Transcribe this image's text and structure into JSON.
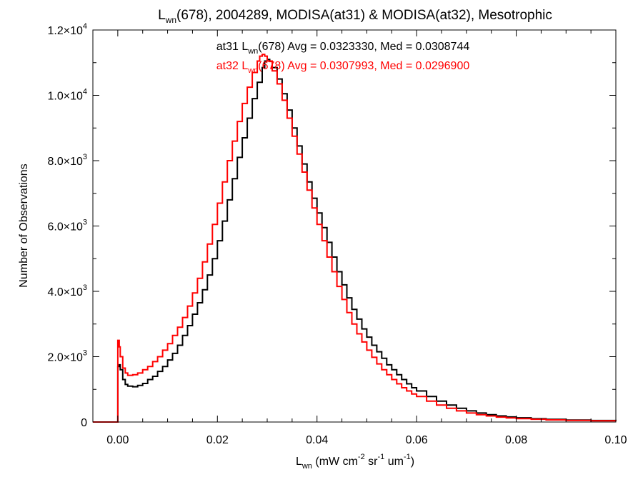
{
  "chart_data": {
    "type": "line",
    "step": true,
    "title": {
      "pre": "L",
      "sub": "wn",
      "post": "(678), 2004289, MODISA(at31) & MODISA(at32), Mesotrophic"
    },
    "xlabel": {
      "pre": "L",
      "sub": "wn",
      "units": [
        {
          "t": " (mW cm"
        },
        {
          "sup": "-2"
        },
        {
          "t": " sr"
        },
        {
          "sup": "-1"
        },
        {
          "t": " um"
        },
        {
          "sup": "-1"
        },
        {
          "t": ")"
        }
      ]
    },
    "ylabel": "Number of Observations",
    "xlim": [
      -0.005,
      0.1
    ],
    "ylim": [
      0,
      12000
    ],
    "xticks": [
      {
        "v": 0.0,
        "label": "0.00"
      },
      {
        "v": 0.02,
        "label": "0.02"
      },
      {
        "v": 0.04,
        "label": "0.04"
      },
      {
        "v": 0.06,
        "label": "0.06"
      },
      {
        "v": 0.08,
        "label": "0.08"
      },
      {
        "v": 0.1,
        "label": "0.10"
      }
    ],
    "yticks": [
      {
        "v": 0,
        "label": "0",
        "exp": ""
      },
      {
        "v": 2000,
        "label": "2.0×10",
        "exp": "3"
      },
      {
        "v": 4000,
        "label": "4.0×10",
        "exp": "3"
      },
      {
        "v": 6000,
        "label": "6.0×10",
        "exp": "3"
      },
      {
        "v": 8000,
        "label": "8.0×10",
        "exp": "3"
      },
      {
        "v": 10000,
        "label": "1.0×10",
        "exp": "4"
      },
      {
        "v": 12000,
        "label": "1.2×10",
        "exp": "4"
      }
    ],
    "series": [
      {
        "name": "at31",
        "color": "#000000",
        "annotation": {
          "pre": "at31 L",
          "sub": "wn",
          "post": "(678) Avg = 0.0323330, Med = 0.0308744"
        },
        "points": [
          [
            -0.005,
            0
          ],
          [
            -0.0002,
            0
          ],
          [
            0.0,
            1700
          ],
          [
            0.0003,
            1750
          ],
          [
            0.0005,
            1600
          ],
          [
            0.001,
            1300
          ],
          [
            0.0015,
            1150
          ],
          [
            0.002,
            1100
          ],
          [
            0.003,
            1080
          ],
          [
            0.004,
            1120
          ],
          [
            0.005,
            1180
          ],
          [
            0.006,
            1300
          ],
          [
            0.007,
            1400
          ],
          [
            0.008,
            1550
          ],
          [
            0.009,
            1700
          ],
          [
            0.01,
            1900
          ],
          [
            0.011,
            2100
          ],
          [
            0.012,
            2350
          ],
          [
            0.013,
            2650
          ],
          [
            0.014,
            2950
          ],
          [
            0.015,
            3300
          ],
          [
            0.016,
            3650
          ],
          [
            0.017,
            4050
          ],
          [
            0.018,
            4500
          ],
          [
            0.019,
            5000
          ],
          [
            0.02,
            5550
          ],
          [
            0.021,
            6150
          ],
          [
            0.022,
            6800
          ],
          [
            0.023,
            7450
          ],
          [
            0.024,
            8100
          ],
          [
            0.025,
            8700
          ],
          [
            0.026,
            9300
          ],
          [
            0.027,
            9900
          ],
          [
            0.028,
            10400
          ],
          [
            0.029,
            10850
          ],
          [
            0.0295,
            11050
          ],
          [
            0.03,
            11100
          ],
          [
            0.0305,
            11050
          ],
          [
            0.031,
            10850
          ],
          [
            0.032,
            10500
          ],
          [
            0.033,
            10050
          ],
          [
            0.034,
            9550
          ],
          [
            0.035,
            9000
          ],
          [
            0.036,
            8450
          ],
          [
            0.037,
            7900
          ],
          [
            0.038,
            7350
          ],
          [
            0.039,
            6850
          ],
          [
            0.04,
            6400
          ],
          [
            0.041,
            5950
          ],
          [
            0.042,
            5500
          ],
          [
            0.043,
            5050
          ],
          [
            0.044,
            4600
          ],
          [
            0.045,
            4200
          ],
          [
            0.046,
            3800
          ],
          [
            0.047,
            3450
          ],
          [
            0.048,
            3150
          ],
          [
            0.049,
            2850
          ],
          [
            0.05,
            2600
          ],
          [
            0.051,
            2350
          ],
          [
            0.052,
            2150
          ],
          [
            0.053,
            1950
          ],
          [
            0.054,
            1750
          ],
          [
            0.055,
            1600
          ],
          [
            0.056,
            1450
          ],
          [
            0.057,
            1300
          ],
          [
            0.058,
            1170
          ],
          [
            0.059,
            1050
          ],
          [
            0.06,
            950
          ],
          [
            0.062,
            780
          ],
          [
            0.064,
            640
          ],
          [
            0.066,
            520
          ],
          [
            0.068,
            420
          ],
          [
            0.07,
            340
          ],
          [
            0.072,
            275
          ],
          [
            0.074,
            225
          ],
          [
            0.076,
            185
          ],
          [
            0.078,
            155
          ],
          [
            0.08,
            130
          ],
          [
            0.083,
            100
          ],
          [
            0.086,
            80
          ],
          [
            0.09,
            60
          ],
          [
            0.095,
            45
          ],
          [
            0.1,
            35
          ]
        ]
      },
      {
        "name": "at32",
        "color": "#ff0000",
        "annotation": {
          "pre": "at32 L",
          "sub": "wn",
          "post": "(678) Avg = 0.0307993, Med = 0.0296900"
        },
        "points": [
          [
            -0.005,
            0
          ],
          [
            -0.0002,
            0
          ],
          [
            0.0,
            2500
          ],
          [
            0.0003,
            2300
          ],
          [
            0.0005,
            2000
          ],
          [
            0.001,
            1650
          ],
          [
            0.0015,
            1500
          ],
          [
            0.002,
            1430
          ],
          [
            0.003,
            1450
          ],
          [
            0.004,
            1500
          ],
          [
            0.005,
            1600
          ],
          [
            0.006,
            1700
          ],
          [
            0.007,
            1850
          ],
          [
            0.008,
            2000
          ],
          [
            0.009,
            2200
          ],
          [
            0.01,
            2400
          ],
          [
            0.011,
            2650
          ],
          [
            0.012,
            2900
          ],
          [
            0.013,
            3200
          ],
          [
            0.014,
            3550
          ],
          [
            0.015,
            3950
          ],
          [
            0.016,
            4400
          ],
          [
            0.017,
            4900
          ],
          [
            0.018,
            5450
          ],
          [
            0.019,
            6050
          ],
          [
            0.02,
            6700
          ],
          [
            0.021,
            7350
          ],
          [
            0.022,
            8000
          ],
          [
            0.023,
            8600
          ],
          [
            0.024,
            9200
          ],
          [
            0.025,
            9750
          ],
          [
            0.026,
            10250
          ],
          [
            0.027,
            10700
          ],
          [
            0.028,
            11050
          ],
          [
            0.0285,
            11200
          ],
          [
            0.029,
            11250
          ],
          [
            0.0295,
            11200
          ],
          [
            0.03,
            11050
          ],
          [
            0.031,
            10750
          ],
          [
            0.032,
            10350
          ],
          [
            0.033,
            9850
          ],
          [
            0.034,
            9300
          ],
          [
            0.035,
            8750
          ],
          [
            0.036,
            8200
          ],
          [
            0.037,
            7650
          ],
          [
            0.038,
            7100
          ],
          [
            0.039,
            6550
          ],
          [
            0.04,
            6050
          ],
          [
            0.041,
            5550
          ],
          [
            0.042,
            5050
          ],
          [
            0.043,
            4600
          ],
          [
            0.044,
            4150
          ],
          [
            0.045,
            3750
          ],
          [
            0.046,
            3350
          ],
          [
            0.047,
            3000
          ],
          [
            0.048,
            2700
          ],
          [
            0.049,
            2450
          ],
          [
            0.05,
            2200
          ],
          [
            0.051,
            1980
          ],
          [
            0.052,
            1780
          ],
          [
            0.053,
            1600
          ],
          [
            0.054,
            1450
          ],
          [
            0.055,
            1300
          ],
          [
            0.056,
            1170
          ],
          [
            0.057,
            1050
          ],
          [
            0.058,
            950
          ],
          [
            0.059,
            860
          ],
          [
            0.06,
            780
          ],
          [
            0.062,
            640
          ],
          [
            0.064,
            520
          ],
          [
            0.066,
            420
          ],
          [
            0.068,
            340
          ],
          [
            0.07,
            275
          ],
          [
            0.072,
            225
          ],
          [
            0.074,
            185
          ],
          [
            0.076,
            150
          ],
          [
            0.078,
            125
          ],
          [
            0.08,
            105
          ],
          [
            0.083,
            85
          ],
          [
            0.086,
            65
          ],
          [
            0.09,
            50
          ],
          [
            0.095,
            38
          ],
          [
            0.1,
            30
          ]
        ]
      }
    ]
  }
}
